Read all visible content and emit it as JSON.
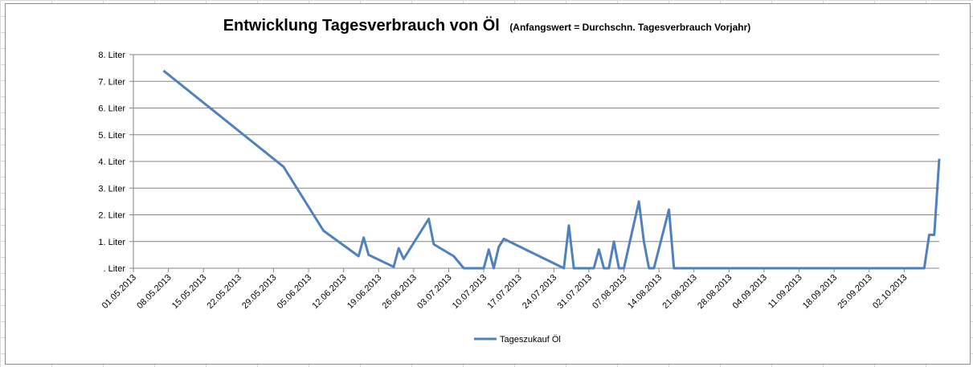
{
  "chart_data": {
    "type": "line",
    "title": "Entwicklung Tagesverbrauch von Öl",
    "subtitle": "(Anfangswert = Durchschn. Tagesverbrauch Vorjahr)",
    "xlabel": "",
    "ylabel": "",
    "ylim": [
      0,
      8
    ],
    "y_tick_labels": [
      ". Liter",
      "1. Liter",
      "2. Liter",
      "3. Liter",
      "4. Liter",
      "5. Liter",
      "6. Liter",
      "7. Liter",
      "8. Liter"
    ],
    "x_tick_labels": [
      "01.05.2013",
      "08.05.2013",
      "15.05.2013",
      "22.05.2013",
      "29.05.2013",
      "05.06.2013",
      "12.06.2013",
      "19.06.2013",
      "26.06.2013",
      "03.07.2013",
      "10.07.2013",
      "17.07.2013",
      "24.07.2013",
      "31.07.2013",
      "07.08.2013",
      "14.08.2013",
      "21.08.2013",
      "28.08.2013",
      "04.09.2013",
      "11.09.2013",
      "18.09.2013",
      "25.09.2013",
      "02.10.2013"
    ],
    "x_unit": "days since 01.05.2013",
    "xlim": [
      0,
      161
    ],
    "grid": true,
    "legend_position": "bottom",
    "series": [
      {
        "name": "Tageszukauf Öl",
        "color": "#4f81bd",
        "x": [
          6,
          30,
          38,
          45,
          46,
          47,
          52,
          53,
          54,
          59,
          60,
          64,
          66,
          67,
          70,
          71,
          72,
          73,
          74,
          86,
          87,
          88,
          92,
          93,
          94,
          95,
          96,
          97,
          98,
          101,
          102,
          103,
          104,
          107,
          108,
          109,
          112,
          113,
          114,
          115,
          116,
          117,
          118,
          119,
          120,
          121,
          122,
          123,
          124,
          125,
          126,
          127,
          128,
          129,
          130,
          131,
          132,
          133,
          134,
          135,
          136,
          137,
          138,
          139,
          140,
          141,
          142,
          143,
          144,
          145,
          146,
          147,
          148,
          149,
          150,
          151,
          152,
          153,
          154,
          155,
          156,
          157,
          158,
          159,
          160,
          161
        ],
        "values": [
          7.4,
          3.8,
          1.4,
          0.45,
          1.15,
          0.5,
          0.05,
          0.75,
          0.35,
          1.85,
          0.9,
          0.45,
          0.0,
          0.0,
          0.0,
          0.7,
          0.0,
          0.8,
          1.1,
          0.0,
          1.6,
          0.0,
          0.0,
          0.7,
          0.0,
          0.0,
          1.0,
          0.0,
          0.0,
          2.5,
          1.0,
          0.0,
          0.0,
          2.2,
          0.0,
          0.0,
          0.0,
          0.0,
          0.0,
          0.0,
          0.0,
          0.0,
          0.0,
          0.0,
          0.0,
          0.0,
          0.0,
          0.0,
          0.0,
          0.0,
          0.0,
          0.0,
          0.0,
          0.0,
          0.0,
          0.0,
          0.0,
          0.0,
          0.0,
          0.0,
          0.0,
          0.0,
          0.0,
          0.0,
          0.0,
          0.0,
          0.0,
          0.0,
          0.0,
          0.0,
          0.0,
          0.0,
          0.0,
          0.0,
          0.0,
          0.0,
          0.0,
          0.0,
          0.0,
          0.0,
          0.0,
          0.0,
          0.0,
          1.25,
          1.25,
          4.1
        ]
      }
    ]
  }
}
